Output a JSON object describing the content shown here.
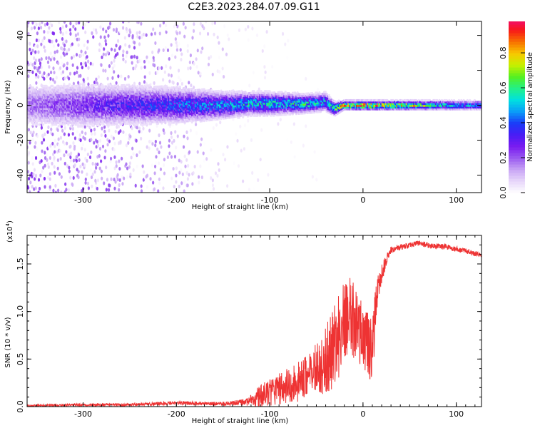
{
  "figure_title": "C2E3.2023.284.07.09.G11",
  "colors": {
    "snr_line": "#ee3333",
    "axis": "#000000",
    "background": "#ffffff",
    "cmap": [
      "#ffffff",
      "#e8d8fa",
      "#c9a6f5",
      "#9b5cf0",
      "#7a1cf0",
      "#4a1cf5",
      "#1a3cf8",
      "#0a9cf8",
      "#00e0e0",
      "#22f088",
      "#55f020",
      "#c8f000",
      "#f8c800",
      "#f87000",
      "#f81818",
      "#f00a80"
    ]
  },
  "chart_data": [
    {
      "type": "heatmap",
      "title": "",
      "xlabel": "Height of straight line (km)",
      "ylabel": "Frequency (Hz)",
      "xlim": [
        -360,
        127
      ],
      "ylim": [
        -50,
        48
      ],
      "x_ticks": [
        -300,
        -200,
        -100,
        0,
        100
      ],
      "x_tick_labels": [
        "-300",
        "-200",
        "-100",
        "0",
        "100"
      ],
      "y_ticks": [
        -40,
        -20,
        0,
        20,
        40
      ],
      "y_tick_labels": [
        "-40",
        "-20",
        "0",
        "20",
        "40"
      ],
      "colorbar": {
        "label": "Normalized spectral amplitude",
        "range": [
          0,
          0.98
        ],
        "ticks": [
          0.0,
          0.2,
          0.4,
          0.6,
          0.8
        ],
        "tick_labels": [
          "0.0",
          "0.2",
          "0.4",
          "0.6",
          "0.8"
        ]
      },
      "ridge": {
        "x": [
          -360,
          -300,
          -250,
          -200,
          -150,
          -120,
          -100,
          -60,
          -40,
          -30,
          -20,
          0,
          50,
          100,
          127
        ],
        "center_hz": [
          0,
          0,
          0,
          0,
          0,
          1,
          1,
          1,
          2,
          -2,
          0,
          0,
          0,
          0,
          0
        ],
        "halfwidth_hz": [
          10,
          10,
          9,
          8,
          6,
          5,
          5,
          4,
          4,
          3,
          2,
          2,
          2,
          2,
          2
        ],
        "peak_amplitude": [
          0.18,
          0.25,
          0.32,
          0.38,
          0.45,
          0.5,
          0.5,
          0.55,
          0.5,
          0.6,
          0.8,
          0.85,
          0.7,
          0.5,
          0.45
        ]
      },
      "noise": {
        "x": [
          -360,
          -300,
          -250,
          -200,
          -160,
          -140,
          -100,
          -60,
          -35
        ],
        "density": [
          1.0,
          0.9,
          0.75,
          0.55,
          0.35,
          0.12,
          0.06,
          0.04,
          0.0
        ],
        "max_amplitude": [
          0.28,
          0.26,
          0.24,
          0.18,
          0.12,
          0.08,
          0.06,
          0.05,
          0.0
        ]
      }
    },
    {
      "type": "line",
      "title": "",
      "xlabel": "Height of straight line (km)",
      "ylabel": "SNR (10 * v/v)",
      "multiplier": "(x10",
      "multiplier_exponent": "4",
      "multiplier_close": ")",
      "xlim": [
        -360,
        127
      ],
      "ylim": [
        0,
        1.8
      ],
      "x_ticks": [
        -300,
        -200,
        -100,
        0,
        100
      ],
      "x_tick_labels": [
        "-300",
        "-200",
        "-100",
        "0",
        "100"
      ],
      "y_ticks": [
        0.0,
        0.5,
        1.0,
        1.5
      ],
      "y_tick_labels": [
        "0.0",
        "0.5",
        "1.0",
        "1.5"
      ],
      "series": [
        {
          "color": "#ee3333",
          "x": [
            -360,
            -300,
            -250,
            -200,
            -150,
            -125,
            -115,
            -105,
            -95,
            -85,
            -75,
            -65,
            -55,
            -45,
            -35,
            -28,
            -22,
            -18,
            -15,
            -10,
            -5,
            0,
            5,
            10,
            15,
            20,
            25,
            30,
            40,
            50,
            60,
            70,
            80,
            90,
            100,
            110,
            120,
            127
          ],
          "base": [
            0.01,
            0.02,
            0.02,
            0.04,
            0.03,
            0.05,
            0.1,
            0.14,
            0.18,
            0.22,
            0.25,
            0.3,
            0.38,
            0.45,
            0.6,
            0.75,
            0.9,
            1.0,
            1.05,
            0.95,
            0.85,
            0.8,
            0.7,
            0.65,
            1.2,
            1.4,
            1.55,
            1.65,
            1.68,
            1.7,
            1.72,
            1.7,
            1.69,
            1.68,
            1.66,
            1.64,
            1.61,
            1.6
          ],
          "spread": [
            0.01,
            0.015,
            0.015,
            0.02,
            0.02,
            0.04,
            0.12,
            0.14,
            0.15,
            0.18,
            0.2,
            0.22,
            0.25,
            0.3,
            0.4,
            0.45,
            0.5,
            0.45,
            0.4,
            0.4,
            0.35,
            0.35,
            0.35,
            0.35,
            0.2,
            0.12,
            0.06,
            0.04,
            0.03,
            0.03,
            0.03,
            0.03,
            0.03,
            0.03,
            0.03,
            0.03,
            0.03,
            0.03
          ]
        }
      ]
    }
  ]
}
